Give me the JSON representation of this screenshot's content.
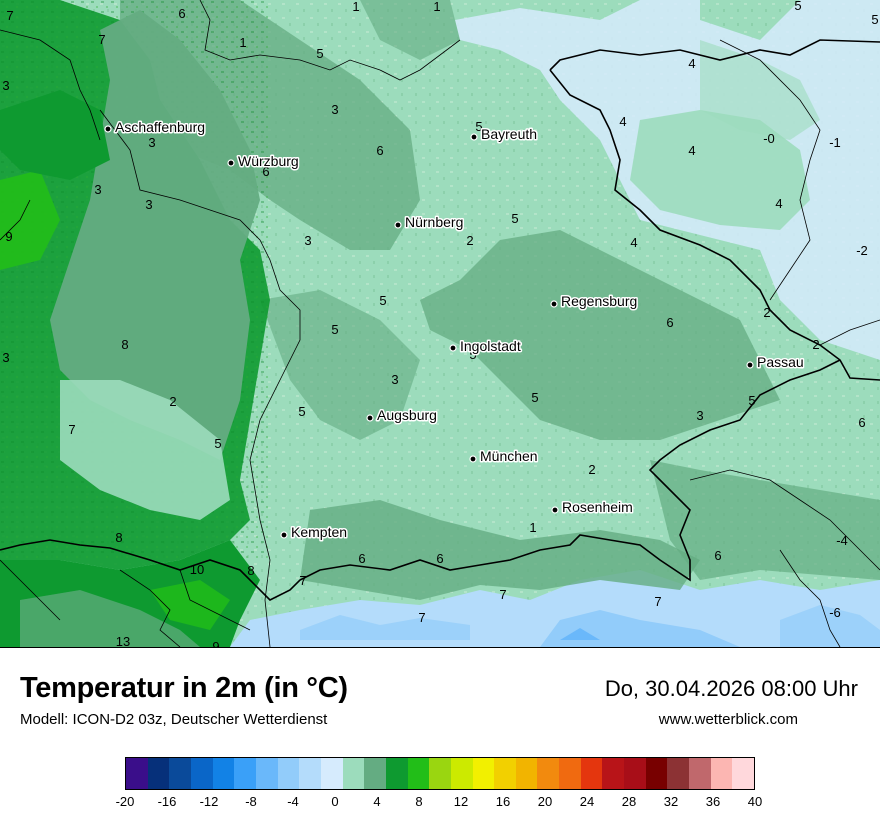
{
  "map": {
    "cities": [
      {
        "name": "Aschaffenburg"
      },
      {
        "name": "Würzburg"
      },
      {
        "name": "Bayreuth"
      },
      {
        "name": "Nürnberg"
      },
      {
        "name": "Regensburg"
      },
      {
        "name": "Ingolstadt"
      },
      {
        "name": "Passau"
      },
      {
        "name": "Augsburg"
      },
      {
        "name": "München"
      },
      {
        "name": "Rosenheim"
      },
      {
        "name": "Kempten"
      }
    ],
    "values": [
      "7",
      "6",
      "1",
      "1",
      "1",
      "5",
      "5",
      "7",
      "3",
      "5",
      "3",
      "3",
      "6",
      "5",
      "4",
      "4",
      "-0",
      "-1",
      "3",
      "6",
      "4",
      "3",
      "9",
      "3",
      "5",
      "2",
      "4",
      "4",
      "6",
      "5",
      "2",
      "3",
      "8",
      "5",
      "5",
      "2",
      "-2",
      "3",
      "5",
      "5",
      "7",
      "5",
      "6",
      "2",
      "8",
      "5",
      "3",
      "1",
      "10",
      "8",
      "6",
      "6",
      "6",
      "-4",
      "7",
      "7",
      "7",
      "7",
      "-6",
      "9",
      "13",
      "2"
    ]
  },
  "footer": {
    "title": "Temperatur in 2m (in °C)",
    "model": "Modell: ICON-D2 03z, Deutscher Wetterdienst",
    "date": "Do, 30.04.2026 08:00 Uhr",
    "website": "www.wetterblick.com"
  },
  "legend": {
    "colors": [
      "#3a0e8a",
      "#06307a",
      "#0a4a9a",
      "#0a66c8",
      "#1282e6",
      "#3aa0f8",
      "#6ab8fa",
      "#92ccfa",
      "#b4dcfb",
      "#d6ebfd",
      "#9cdcbc",
      "#64ac82",
      "#0e9a30",
      "#22be18",
      "#9ad610",
      "#ccea00",
      "#f2f000",
      "#f2d000",
      "#f2b400",
      "#f28a0e",
      "#f06a10",
      "#e4360e",
      "#b81418",
      "#a80e18",
      "#780000",
      "#8c3234",
      "#c0686c",
      "#fcb6b2",
      "#ffd8dc"
    ],
    "ticks": [
      "-20",
      "-16",
      "-12",
      "-8",
      "-4",
      "0",
      "4",
      "8",
      "12",
      "16",
      "20",
      "24",
      "28",
      "32",
      "36",
      "40"
    ]
  }
}
